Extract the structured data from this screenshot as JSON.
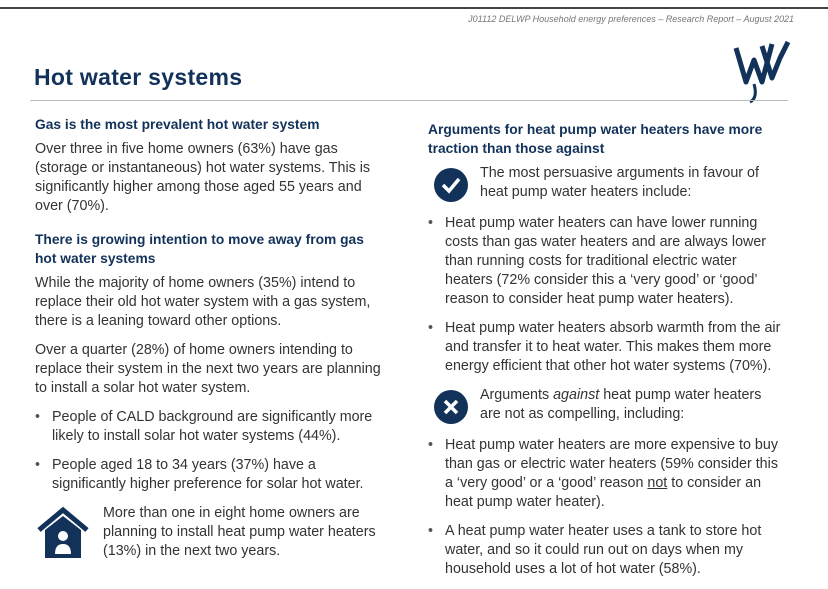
{
  "header": {
    "reference": "J01112 DELWP Household energy preferences – Research Report – August 2021"
  },
  "title": "Hot water systems",
  "left": {
    "sections": [
      {
        "heading": "Gas is the most prevalent hot water system",
        "paragraphs": [
          "Over three in five home owners (63%) have gas (storage or instantaneous) hot water systems. This is significantly higher among those aged 55 years and over (70%)."
        ]
      },
      {
        "heading": "There is growing intention to move away from gas hot water systems",
        "paragraphs": [
          "While the majority of home owners (35%) intend to replace their old hot water system with a gas system, there is a leaning toward other options.",
          "Over a quarter (28%) of home owners intending to replace their system in the next two years are planning to install a solar hot water system."
        ]
      }
    ],
    "bullets": [
      "People of CALD background are significantly more likely to install solar hot water systems (44%).",
      "People aged 18 to 34 years (37%) have a significantly higher preference for solar hot water."
    ],
    "callout": "More than one in eight home owners are planning to install heat pump water heaters (13%) in the next two years."
  },
  "right": {
    "heading": "Arguments for heat pump water heaters have more traction than those against",
    "favour": {
      "intro": "The most persuasive arguments in favour of heat pump water heaters include:",
      "bullets": [
        "Heat pump water heaters can have lower running costs than gas water heaters and are always lower than running costs for traditional electric water heaters (72% consider this a ‘very good’ or ‘good’ reason to consider heat pump water heaters).",
        "Heat pump water heaters absorb warmth from the air and transfer it to heat water. This makes them more energy efficient that other hot water systems (70%)."
      ]
    },
    "against": {
      "intro": [
        "Arguments ",
        "against",
        " heat pump water heaters are not as compelling, including:"
      ],
      "bullets": [
        [
          "Heat pump water heaters are more expensive to buy than gas or electric water heaters (59% consider this a ‘very good’ or a ‘good’ reason ",
          "not",
          " to consider an heat pump water heater)."
        ],
        [
          "A heat pump water heater uses a tank to store hot water, and so it could run out on days when my household uses a lot of hot water (58%)."
        ]
      ]
    }
  }
}
